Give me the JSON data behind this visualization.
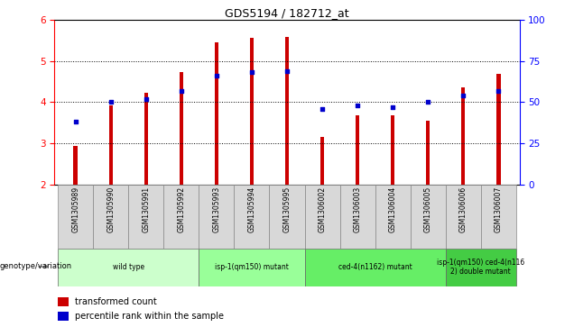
{
  "title": "GDS5194 / 182712_at",
  "samples": [
    "GSM1305989",
    "GSM1305990",
    "GSM1305991",
    "GSM1305992",
    "GSM1305993",
    "GSM1305994",
    "GSM1305995",
    "GSM1306002",
    "GSM1306003",
    "GSM1306004",
    "GSM1306005",
    "GSM1306006",
    "GSM1306007"
  ],
  "transformed_count": [
    2.93,
    3.93,
    4.23,
    4.72,
    5.45,
    5.56,
    5.57,
    3.16,
    3.68,
    3.68,
    3.55,
    4.35,
    4.68
  ],
  "percentile_rank": [
    38,
    50,
    52,
    57,
    66,
    68,
    69,
    46,
    48,
    47,
    50,
    54,
    57
  ],
  "bar_bottom": 2.0,
  "ylim_left": [
    2.0,
    6.0
  ],
  "ylim_right": [
    0,
    100
  ],
  "yticks_left": [
    2,
    3,
    4,
    5,
    6
  ],
  "yticks_right": [
    0,
    25,
    50,
    75,
    100
  ],
  "bar_color": "#cc0000",
  "dot_color": "#0000cc",
  "groups": [
    {
      "label": "wild type",
      "start": 0,
      "end": 3,
      "color": "#ccffcc"
    },
    {
      "label": "isp-1(qm150) mutant",
      "start": 4,
      "end": 6,
      "color": "#99ff99"
    },
    {
      "label": "ced-4(n1162) mutant",
      "start": 7,
      "end": 10,
      "color": "#66ee66"
    },
    {
      "label": "isp-1(qm150) ced-4(n116\n2) double mutant",
      "start": 11,
      "end": 12,
      "color": "#44cc44"
    }
  ],
  "legend_transformed": "transformed count",
  "legend_percentile": "percentile rank within the sample",
  "genotype_label": "genotype/variation"
}
